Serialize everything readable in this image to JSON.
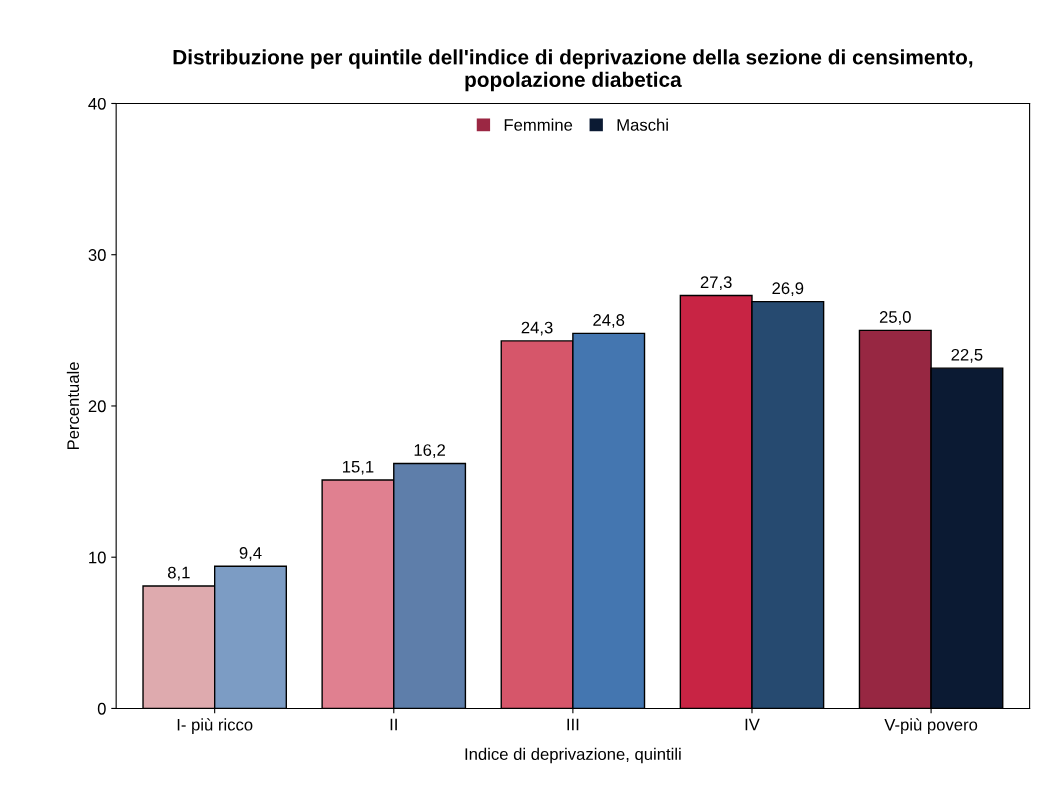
{
  "chart_data": {
    "type": "bar",
    "title": "Distribuzione per quintile dell'indice di deprivazione della sezione di censimento,\npopolazione diabetica",
    "xlabel": "Indice di deprivazione, quintili",
    "ylabel": "Percentuale",
    "categories": [
      "I- più ricco",
      "II",
      "III",
      "IV",
      "V-più povero"
    ],
    "series": [
      {
        "name": "Femmine",
        "color": "#9b2743",
        "colors": [
          "#deaaae",
          "#e08090",
          "#d6566a",
          "#c82444",
          "#972742"
        ],
        "values": [
          8.1,
          15.1,
          24.3,
          27.3,
          25.0
        ],
        "value_labels": [
          "8,1",
          "15,1",
          "24,3",
          "27,3",
          "25,0"
        ]
      },
      {
        "name": "Maschi",
        "color": "#0b1a33",
        "colors": [
          "#7c9cc4",
          "#5e7eaa",
          "#4476b0",
          "#264a70",
          "#0b1a33"
        ],
        "values": [
          9.4,
          16.2,
          24.8,
          26.9,
          22.5
        ],
        "value_labels": [
          "9,4",
          "16,2",
          "24,8",
          "26,9",
          "22,5"
        ]
      }
    ],
    "ylim": [
      0,
      40
    ],
    "yticks": [
      0,
      10,
      20,
      30,
      40
    ],
    "grid": false,
    "legend": "top"
  }
}
